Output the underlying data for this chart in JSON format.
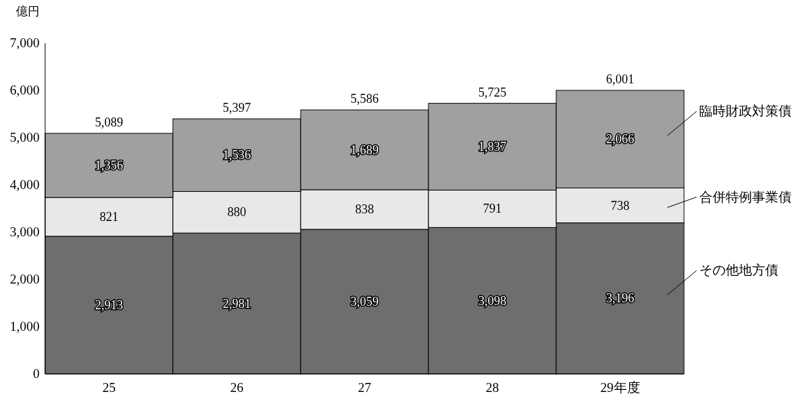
{
  "chart_data": {
    "type": "bar",
    "stacked": true,
    "ylabel": "億円",
    "categories": [
      "25",
      "26",
      "27",
      "28",
      "29年度"
    ],
    "ylim": [
      0,
      7000
    ],
    "yticks": [
      {
        "value": 0,
        "label": "0"
      },
      {
        "value": 1000,
        "label": "1,000"
      },
      {
        "value": 2000,
        "label": "2,000"
      },
      {
        "value": 3000,
        "label": "3,000"
      },
      {
        "value": 4000,
        "label": "4,000"
      },
      {
        "value": 5000,
        "label": "5,000"
      },
      {
        "value": 6000,
        "label": "6,000"
      },
      {
        "value": 7000,
        "label": "7,000"
      }
    ],
    "series": [
      {
        "name": "その他地方債",
        "color": "#6e6e6e",
        "values": [
          2913,
          2981,
          3059,
          3098,
          3196
        ],
        "value_labels": [
          "2,913",
          "2,981",
          "3,059",
          "3,098",
          "3,196"
        ]
      },
      {
        "name": "合併特例事業債",
        "color": "#e8e8e8",
        "values": [
          821,
          880,
          838,
          791,
          738
        ],
        "value_labels": [
          "821",
          "880",
          "838",
          "791",
          "738"
        ]
      },
      {
        "name": "臨時財政対策債",
        "color": "#a0a0a0",
        "values": [
          1356,
          1536,
          1689,
          1837,
          2066
        ],
        "value_labels": [
          "1,356",
          "1,536",
          "1,689",
          "1,837",
          "2,066"
        ]
      }
    ],
    "totals": [
      "5,089",
      "5,397",
      "5,586",
      "5,725",
      "6,001"
    ]
  }
}
